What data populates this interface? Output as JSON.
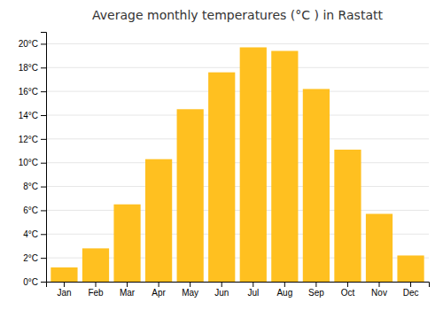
{
  "chart_data": {
    "type": "bar",
    "title": "Average monthly temperatures (°C ) in Rastatt",
    "categories": [
      "Jan",
      "Feb",
      "Mar",
      "Apr",
      "May",
      "Jun",
      "Jul",
      "Aug",
      "Sep",
      "Oct",
      "Nov",
      "Dec"
    ],
    "values": [
      1.2,
      2.8,
      6.5,
      10.3,
      14.5,
      17.6,
      19.7,
      19.4,
      16.2,
      11.1,
      5.7,
      2.2
    ],
    "color": "#FFC020",
    "ylim": [
      0,
      21
    ],
    "yticks": [
      {
        "value": 0,
        "label": "0°C"
      },
      {
        "value": 2,
        "label": "2°C"
      },
      {
        "value": 4,
        "label": "4°C"
      },
      {
        "value": 6,
        "label": "6°C"
      },
      {
        "value": 8,
        "label": "8°C"
      },
      {
        "value": 10,
        "label": "10°C"
      },
      {
        "value": 12,
        "label": "12°C"
      },
      {
        "value": 14,
        "label": "14°C"
      },
      {
        "value": 16,
        "label": "16°C"
      },
      {
        "value": 18,
        "label": "18°C"
      },
      {
        "value": 20,
        "label": "20°C"
      }
    ],
    "grid": true
  }
}
